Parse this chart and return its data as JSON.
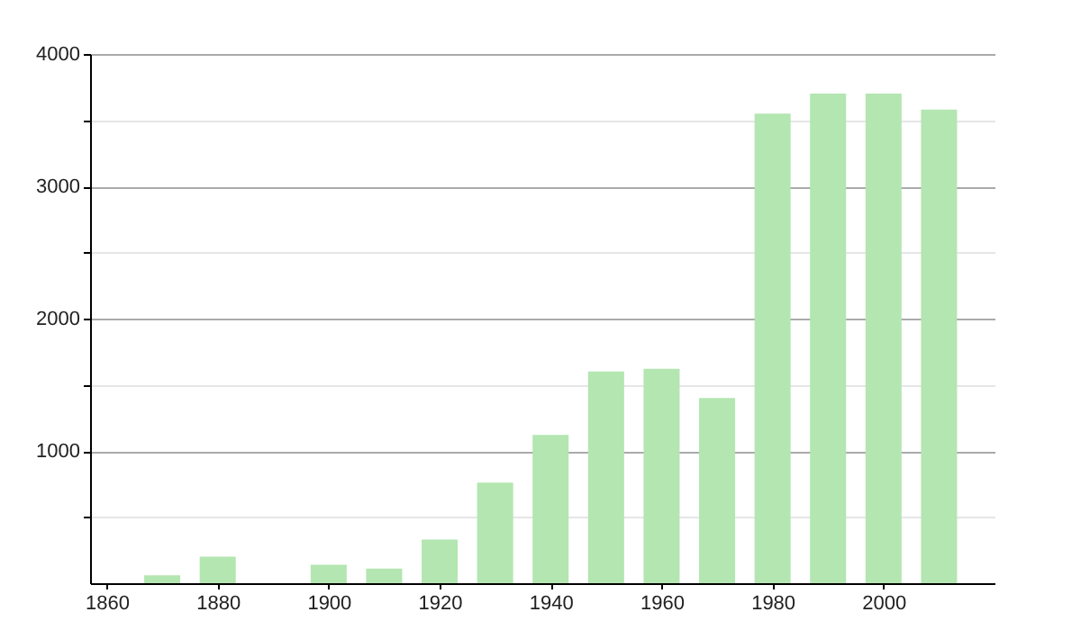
{
  "chart_data": {
    "type": "bar",
    "x": [
      1870,
      1880,
      1900,
      1910,
      1920,
      1930,
      1940,
      1950,
      1960,
      1970,
      1980,
      1990,
      2000,
      2010
    ],
    "values": [
      60,
      200,
      140,
      110,
      330,
      760,
      1120,
      1600,
      1620,
      1400,
      3550,
      3700,
      3700,
      3580
    ],
    "color": "#b3e6b0",
    "xlim": [
      1857,
      2020
    ],
    "xticks": [
      1860,
      1880,
      1900,
      1920,
      1940,
      1960,
      1980,
      2000
    ],
    "ylim": [
      0,
      4000
    ],
    "yticks": [
      {
        "value": 500,
        "label": null
      },
      1000,
      {
        "value": 1500,
        "label": null
      },
      2000,
      {
        "value": 2500,
        "label": null
      },
      3000,
      {
        "value": 3500,
        "label": null
      },
      4000
    ],
    "grid": "y"
  }
}
